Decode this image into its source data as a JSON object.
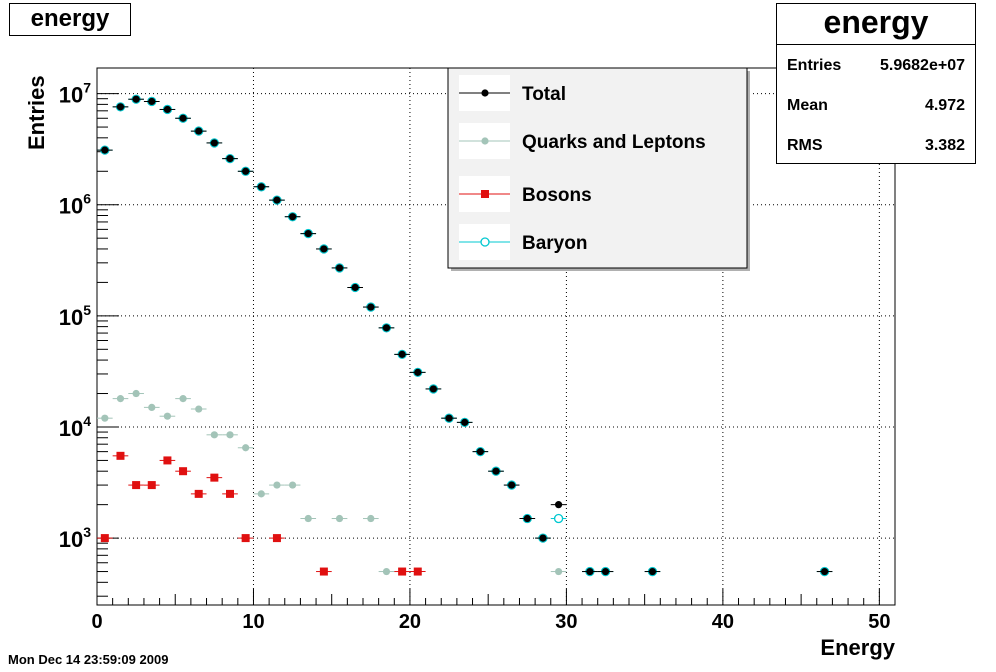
{
  "chart_data": {
    "type": "scatter",
    "title": "energy",
    "xlabel": "Energy",
    "ylabel": "Entries",
    "xlim": [
      0,
      51
    ],
    "ylim": [
      250,
      17000000
    ],
    "y_scale": "log",
    "x_ticks": [
      "0",
      "10",
      "20",
      "30",
      "40",
      "50"
    ],
    "y_ticks": [
      {
        "base": "10",
        "exp": "3",
        "value": 1000
      },
      {
        "base": "10",
        "exp": "4",
        "value": 10000
      },
      {
        "base": "10",
        "exp": "5",
        "value": 100000
      },
      {
        "base": "10",
        "exp": "6",
        "value": 1000000
      },
      {
        "base": "10",
        "exp": "7",
        "value": 10000000
      }
    ],
    "grid": true,
    "legend_position": "top-center",
    "series": [
      {
        "name": "Total",
        "marker": "filled-circle",
        "color": "#000000",
        "x": [
          0.5,
          1.5,
          2.5,
          3.5,
          4.5,
          5.5,
          6.5,
          7.5,
          8.5,
          9.5,
          10.5,
          11.5,
          12.5,
          13.5,
          14.5,
          15.5,
          16.5,
          17.5,
          18.5,
          19.5,
          20.5,
          21.5,
          22.5,
          23.5,
          24.5,
          25.5,
          26.5,
          27.5,
          28.5,
          29.5,
          31.5,
          32.5,
          35.5,
          46.5
        ],
        "y": [
          3100000,
          7600000,
          8900000,
          8500000,
          7200000,
          6000000,
          4600000,
          3600000,
          2600000,
          2000000,
          1450000,
          1100000,
          780000,
          550000,
          400000,
          270000,
          180000,
          120000,
          78000,
          45000,
          31000,
          22000,
          12000,
          11000,
          6000,
          4000,
          3000,
          1500,
          1000,
          2000,
          500,
          500,
          500,
          500
        ]
      },
      {
        "name": "Quarks and Leptons",
        "marker": "filled-circle",
        "color": "#a3c4b8",
        "x": [
          0.5,
          1.5,
          2.5,
          3.5,
          4.5,
          5.5,
          6.5,
          7.5,
          8.5,
          9.5,
          10.5,
          11.5,
          12.5,
          13.5,
          15.5,
          17.5,
          18.5,
          29.5
        ],
        "y": [
          12000,
          18000,
          20000,
          15000,
          12500,
          18000,
          14500,
          8500,
          8500,
          6500,
          2500,
          3000,
          3000,
          1500,
          1500,
          1500,
          500,
          500
        ]
      },
      {
        "name": "Bosons",
        "marker": "filled-square",
        "color": "#e01010",
        "x": [
          0.5,
          1.5,
          2.5,
          3.5,
          4.5,
          5.5,
          6.5,
          7.5,
          8.5,
          9.5,
          11.5,
          14.5,
          19.5,
          20.5
        ],
        "y": [
          1000,
          5500,
          3000,
          3000,
          5000,
          4000,
          2500,
          3500,
          2500,
          1000,
          1000,
          500,
          500,
          500
        ]
      },
      {
        "name": "Baryon",
        "marker": "open-circle",
        "color": "#00c8d0",
        "x": [
          0.5,
          1.5,
          2.5,
          3.5,
          4.5,
          5.5,
          6.5,
          7.5,
          8.5,
          9.5,
          10.5,
          11.5,
          12.5,
          13.5,
          14.5,
          15.5,
          16.5,
          17.5,
          18.5,
          19.5,
          20.5,
          21.5,
          22.5,
          23.5,
          24.5,
          25.5,
          26.5,
          27.5,
          28.5,
          29.5,
          31.5,
          32.5,
          35.5,
          46.5
        ],
        "y": [
          3100000,
          7600000,
          8900000,
          8500000,
          7200000,
          6000000,
          4600000,
          3600000,
          2600000,
          2000000,
          1450000,
          1100000,
          780000,
          550000,
          400000,
          270000,
          180000,
          120000,
          78000,
          45000,
          31000,
          22000,
          12000,
          11000,
          6000,
          4000,
          3000,
          1500,
          1000,
          1500,
          500,
          500,
          500,
          500
        ]
      }
    ]
  },
  "title_box": {
    "text": "energy"
  },
  "stats_box": {
    "title": "energy",
    "rows": [
      {
        "label": "Entries",
        "value": "5.9682e+07"
      },
      {
        "label": "Mean",
        "value": "4.972"
      },
      {
        "label": "RMS",
        "value": "3.382"
      }
    ]
  },
  "timestamp": "Mon Dec 14 23:59:09 2009"
}
